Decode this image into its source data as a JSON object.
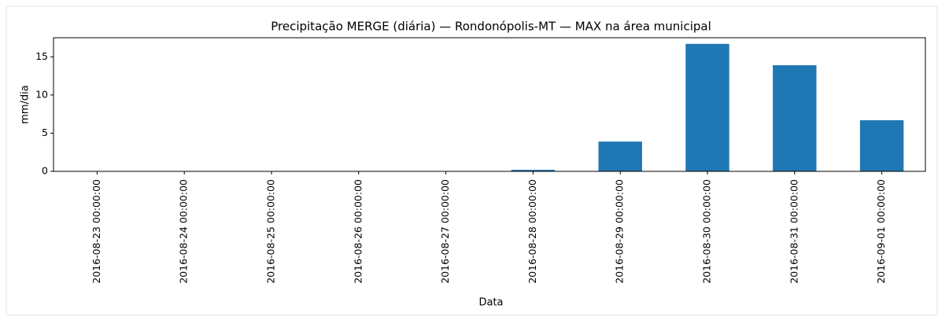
{
  "chart_data": {
    "type": "bar",
    "title": "Precipitação MERGE (diária) — Rondonópolis-MT — MAX na área municipal",
    "xlabel": "Data",
    "ylabel": "mm/dia",
    "categories": [
      "2016-08-23 00:00:00",
      "2016-08-24 00:00:00",
      "2016-08-25 00:00:00",
      "2016-08-26 00:00:00",
      "2016-08-27 00:00:00",
      "2016-08-28 00:00:00",
      "2016-08-29 00:00:00",
      "2016-08-30 00:00:00",
      "2016-08-31 00:00:00",
      "2016-09-01 00:00:00"
    ],
    "values": [
      0,
      0,
      0.05,
      0.05,
      0,
      0.2,
      3.9,
      16.7,
      13.9,
      6.7
    ],
    "color": "#1f77b4",
    "ylim": [
      0,
      17.5
    ],
    "yticks": [
      0,
      5,
      10,
      15
    ],
    "grid": false
  }
}
